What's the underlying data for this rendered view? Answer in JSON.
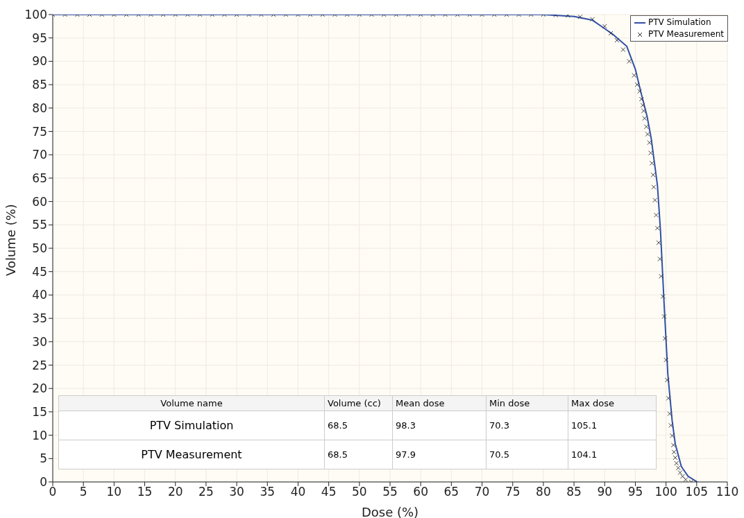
{
  "chart_data": {
    "type": "scatter",
    "xlabel": "Dose (%)",
    "ylabel": "Volume (%)",
    "xlim": [
      0,
      110
    ],
    "ylim": [
      0,
      100
    ],
    "xticks": [
      0,
      5,
      10,
      15,
      20,
      25,
      30,
      35,
      40,
      45,
      50,
      55,
      60,
      65,
      70,
      75,
      80,
      85,
      90,
      95,
      100,
      105,
      110
    ],
    "yticks": [
      0,
      5,
      10,
      15,
      20,
      25,
      30,
      35,
      40,
      45,
      50,
      55,
      60,
      65,
      70,
      75,
      80,
      85,
      90,
      95,
      100
    ],
    "grid": true,
    "legend": "top right",
    "series": [
      {
        "name": "PTV Simulation",
        "type": "line",
        "color": "#3050a8",
        "marker": "none",
        "x": [
          0,
          80,
          85,
          88,
          90,
          91.3,
          93.6,
          95,
          95.9,
          96.9,
          97.6,
          98.1,
          98.6,
          99.1,
          99.7,
          100.3,
          101,
          101.5,
          102.5,
          103.6,
          105.1
        ],
        "values": [
          100,
          100,
          99.6,
          98.8,
          97,
          95.8,
          93.2,
          88.3,
          83.4,
          78.3,
          73.4,
          68.4,
          63.5,
          53.7,
          37.8,
          23,
          13.1,
          8.2,
          3.3,
          1.2,
          0
        ]
      },
      {
        "name": "PTV Measurement",
        "color": "#303030",
        "marker": "cross",
        "x": [
          0,
          2,
          4,
          6,
          8,
          10,
          12,
          14,
          16,
          18,
          20,
          22,
          24,
          26,
          28,
          30,
          32,
          34,
          36,
          38,
          40,
          42,
          44,
          46,
          48,
          50,
          52,
          54,
          56,
          58,
          60,
          62,
          64,
          66,
          68,
          70,
          72,
          74,
          76,
          78,
          80,
          82,
          84,
          86,
          88,
          90,
          91,
          92,
          93,
          94,
          94.8,
          95.3,
          95.7,
          96,
          96.2,
          96.35,
          96.5,
          96.8,
          97,
          97.3,
          97.5,
          97.7,
          97.9,
          98,
          98.2,
          98.4,
          98.6,
          98.8,
          99,
          99.2,
          99.5,
          99.7,
          99.85,
          100,
          100.2,
          100.4,
          100.6,
          100.8,
          101,
          101.2,
          101.3,
          101.5,
          101.7,
          102,
          102.3,
          102.7,
          103.2,
          104.1
        ],
        "values": [
          100,
          100,
          100,
          100,
          100,
          100,
          100,
          100,
          100,
          100,
          100,
          100,
          100,
          100,
          100,
          100,
          100,
          100,
          100,
          100,
          100,
          100,
          100,
          100,
          100,
          100,
          100,
          100,
          100,
          100,
          100,
          100,
          100,
          100,
          100,
          100,
          100,
          100,
          100,
          100,
          100,
          99.9,
          99.8,
          99.5,
          99,
          97.5,
          96,
          94.5,
          92.5,
          90,
          87,
          85,
          83.6,
          81.9,
          80.6,
          79.4,
          77.8,
          76,
          74.4,
          72.6,
          70.4,
          68.2,
          65.7,
          63.1,
          60.3,
          57.1,
          54.3,
          51.2,
          47.7,
          44,
          39.7,
          35.4,
          30.7,
          26.1,
          21.8,
          17.9,
          14.6,
          12.1,
          9.9,
          7.9,
          6.4,
          5.2,
          4,
          3,
          2,
          1.2,
          0.5,
          0
        ]
      }
    ],
    "annotations": [
      "Volume name",
      "Volume (cc)",
      "Mean dose",
      "Min dose",
      "Max dose",
      "PTV Simulation",
      "68.5",
      "98.3",
      "70.3",
      "105.1",
      "PTV Measurement",
      "68.5",
      "97.9",
      "70.5",
      "104.1"
    ]
  }
}
